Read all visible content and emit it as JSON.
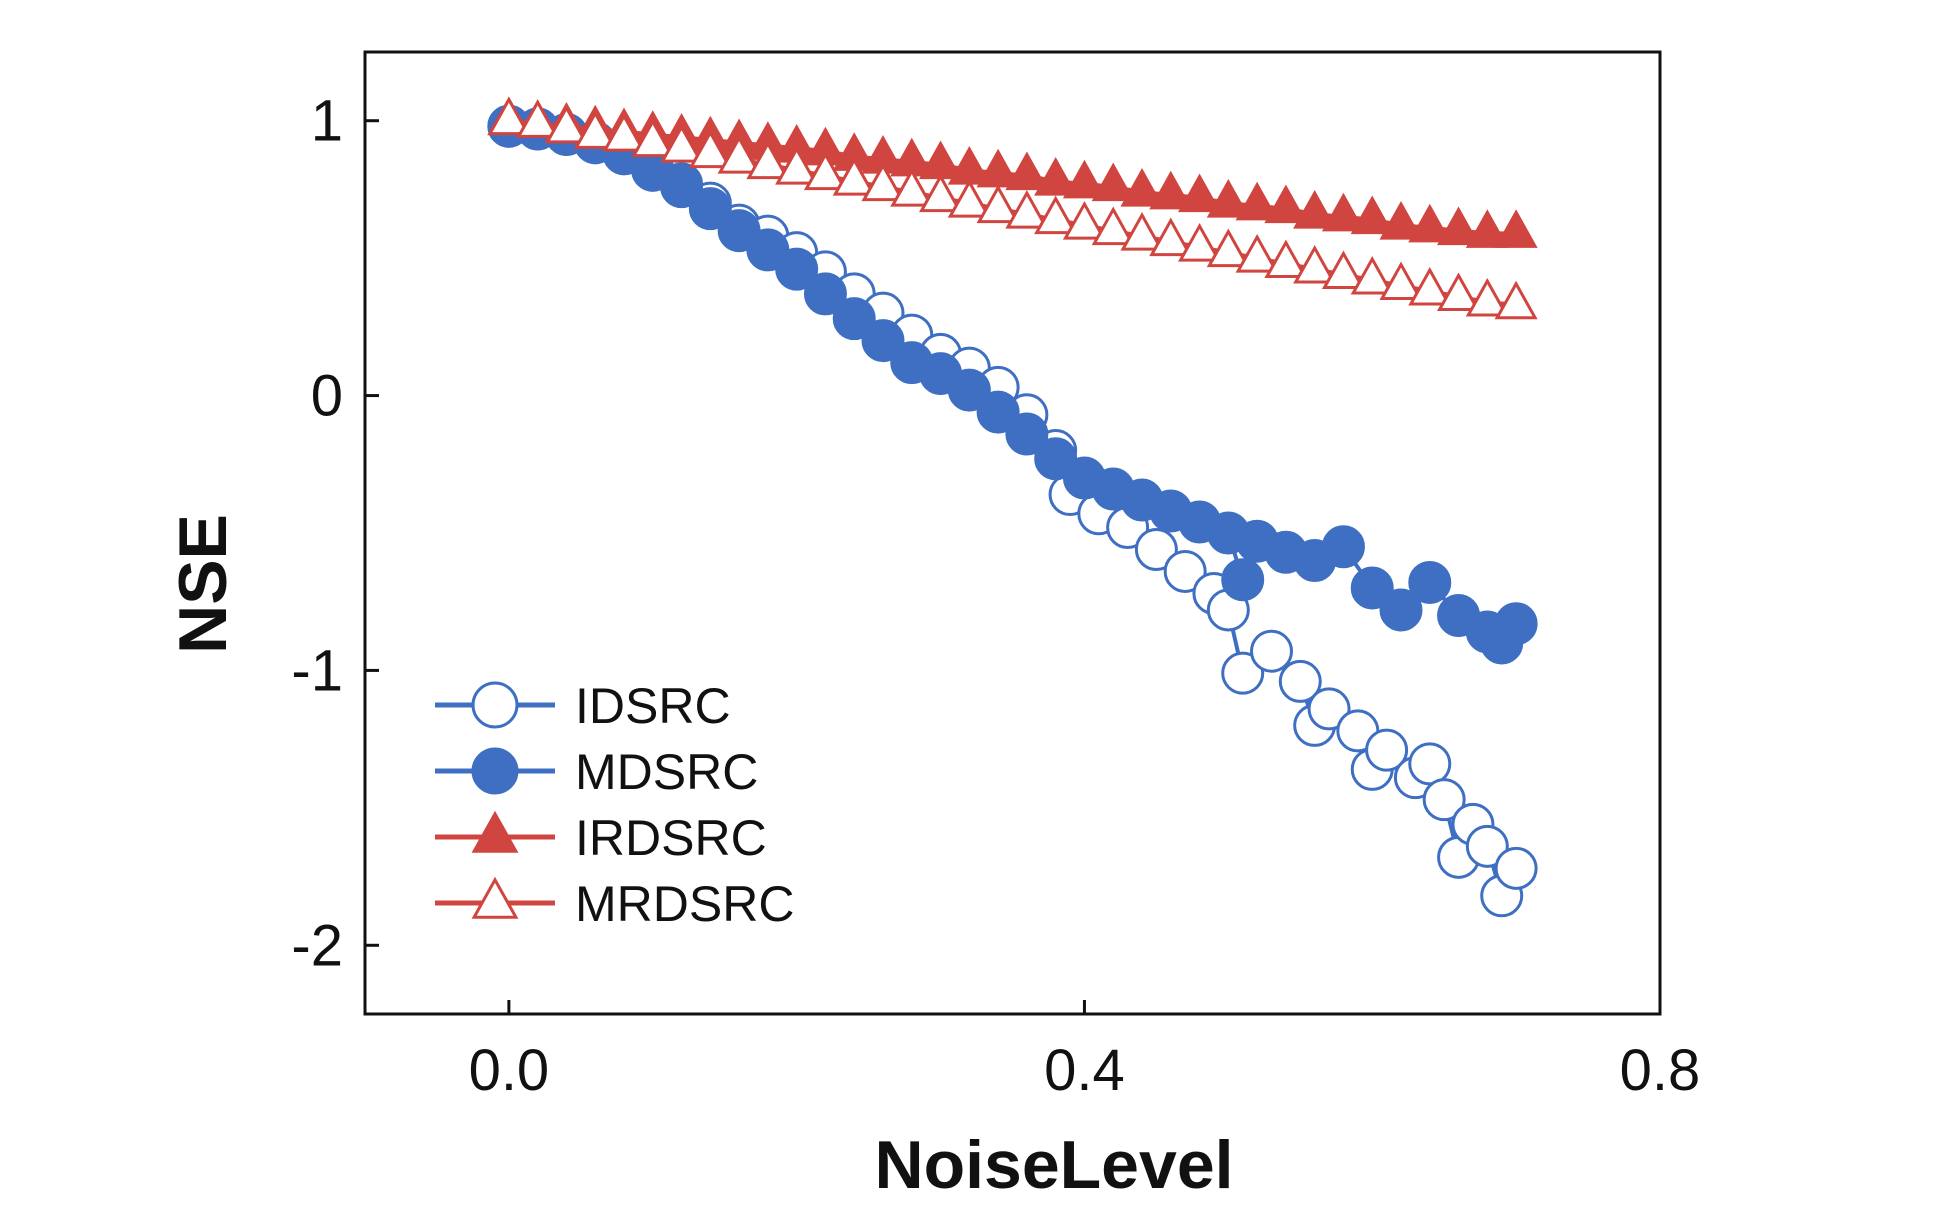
{
  "chart_data": {
    "type": "scatter",
    "xlabel": "NoiseLevel",
    "ylabel": "NSE",
    "xlim": [
      -0.1,
      0.8
    ],
    "ylim": [
      -2.25,
      1.25
    ],
    "xticks": [
      0.0,
      0.4,
      0.8
    ],
    "xtick_labels": [
      "0.0",
      "0.4",
      "0.8"
    ],
    "yticks": [
      1,
      0,
      -1,
      -2
    ],
    "ytick_labels": [
      "1",
      "0",
      "-1",
      "-2"
    ],
    "grid": false,
    "legend_position": "bottom-left",
    "colors": {
      "blue": "#3e6fc2",
      "red": "#d0453f",
      "axis": "#111111"
    },
    "series": [
      {
        "name": "IDSRC",
        "color": "#3e6fc2",
        "marker": "circle-open",
        "x": [
          0.0,
          0.02,
          0.04,
          0.06,
          0.08,
          0.1,
          0.12,
          0.14,
          0.16,
          0.18,
          0.2,
          0.22,
          0.24,
          0.26,
          0.28,
          0.3,
          0.32,
          0.34,
          0.36,
          0.38,
          0.39,
          0.41,
          0.43,
          0.45,
          0.47,
          0.49,
          0.5,
          0.51,
          0.53,
          0.55,
          0.56,
          0.57,
          0.59,
          0.6,
          0.61,
          0.63,
          0.64,
          0.65,
          0.66,
          0.67,
          0.68,
          0.69,
          0.7
        ],
        "y": [
          0.98,
          0.97,
          0.95,
          0.92,
          0.88,
          0.82,
          0.77,
          0.7,
          0.62,
          0.58,
          0.52,
          0.45,
          0.37,
          0.3,
          0.22,
          0.15,
          0.1,
          0.03,
          -0.07,
          -0.2,
          -0.36,
          -0.43,
          -0.48,
          -0.56,
          -0.64,
          -0.72,
          -0.78,
          -1.01,
          -0.93,
          -1.04,
          -1.2,
          -1.14,
          -1.22,
          -1.36,
          -1.29,
          -1.39,
          -1.34,
          -1.47,
          -1.68,
          -1.56,
          -1.64,
          -1.82,
          -1.72
        ]
      },
      {
        "name": "MDSRC",
        "color": "#3e6fc2",
        "marker": "circle-filled",
        "x": [
          0.0,
          0.02,
          0.04,
          0.06,
          0.08,
          0.1,
          0.12,
          0.14,
          0.16,
          0.18,
          0.2,
          0.22,
          0.24,
          0.26,
          0.28,
          0.3,
          0.32,
          0.34,
          0.36,
          0.38,
          0.4,
          0.42,
          0.44,
          0.46,
          0.48,
          0.5,
          0.51,
          0.52,
          0.54,
          0.56,
          0.58,
          0.6,
          0.62,
          0.64,
          0.66,
          0.68,
          0.69,
          0.7
        ],
        "y": [
          0.98,
          0.97,
          0.95,
          0.92,
          0.88,
          0.82,
          0.76,
          0.68,
          0.6,
          0.53,
          0.46,
          0.37,
          0.28,
          0.2,
          0.12,
          0.08,
          0.02,
          -0.06,
          -0.14,
          -0.23,
          -0.3,
          -0.34,
          -0.38,
          -0.42,
          -0.46,
          -0.5,
          -0.67,
          -0.53,
          -0.57,
          -0.6,
          -0.55,
          -0.7,
          -0.78,
          -0.68,
          -0.8,
          -0.86,
          -0.9,
          -0.83
        ]
      },
      {
        "name": "IRDSRC",
        "color": "#d0453f",
        "marker": "triangle-filled",
        "x": [
          0.0,
          0.02,
          0.04,
          0.06,
          0.08,
          0.1,
          0.12,
          0.14,
          0.16,
          0.18,
          0.2,
          0.22,
          0.24,
          0.26,
          0.28,
          0.3,
          0.32,
          0.34,
          0.36,
          0.38,
          0.4,
          0.42,
          0.44,
          0.46,
          0.48,
          0.5,
          0.52,
          0.54,
          0.56,
          0.58,
          0.6,
          0.62,
          0.64,
          0.66,
          0.68,
          0.7
        ],
        "y": [
          1.0,
          0.99,
          0.98,
          0.97,
          0.96,
          0.95,
          0.94,
          0.93,
          0.92,
          0.91,
          0.9,
          0.89,
          0.87,
          0.86,
          0.85,
          0.84,
          0.82,
          0.81,
          0.8,
          0.78,
          0.77,
          0.76,
          0.74,
          0.73,
          0.72,
          0.7,
          0.69,
          0.68,
          0.66,
          0.65,
          0.64,
          0.62,
          0.61,
          0.6,
          0.59,
          0.59
        ]
      },
      {
        "name": "MRDSRC",
        "color": "#d0453f",
        "marker": "triangle-open",
        "x": [
          0.0,
          0.02,
          0.04,
          0.06,
          0.08,
          0.1,
          0.12,
          0.14,
          0.16,
          0.18,
          0.2,
          0.22,
          0.24,
          0.26,
          0.28,
          0.3,
          0.32,
          0.34,
          0.36,
          0.38,
          0.4,
          0.42,
          0.44,
          0.46,
          0.48,
          0.5,
          0.52,
          0.54,
          0.56,
          0.58,
          0.6,
          0.62,
          0.64,
          0.66,
          0.68,
          0.7
        ],
        "y": [
          1.0,
          0.99,
          0.97,
          0.95,
          0.94,
          0.92,
          0.9,
          0.88,
          0.86,
          0.84,
          0.82,
          0.8,
          0.78,
          0.76,
          0.74,
          0.72,
          0.7,
          0.68,
          0.66,
          0.64,
          0.62,
          0.6,
          0.58,
          0.56,
          0.54,
          0.52,
          0.5,
          0.48,
          0.46,
          0.44,
          0.42,
          0.4,
          0.38,
          0.36,
          0.34,
          0.33
        ]
      }
    ]
  }
}
